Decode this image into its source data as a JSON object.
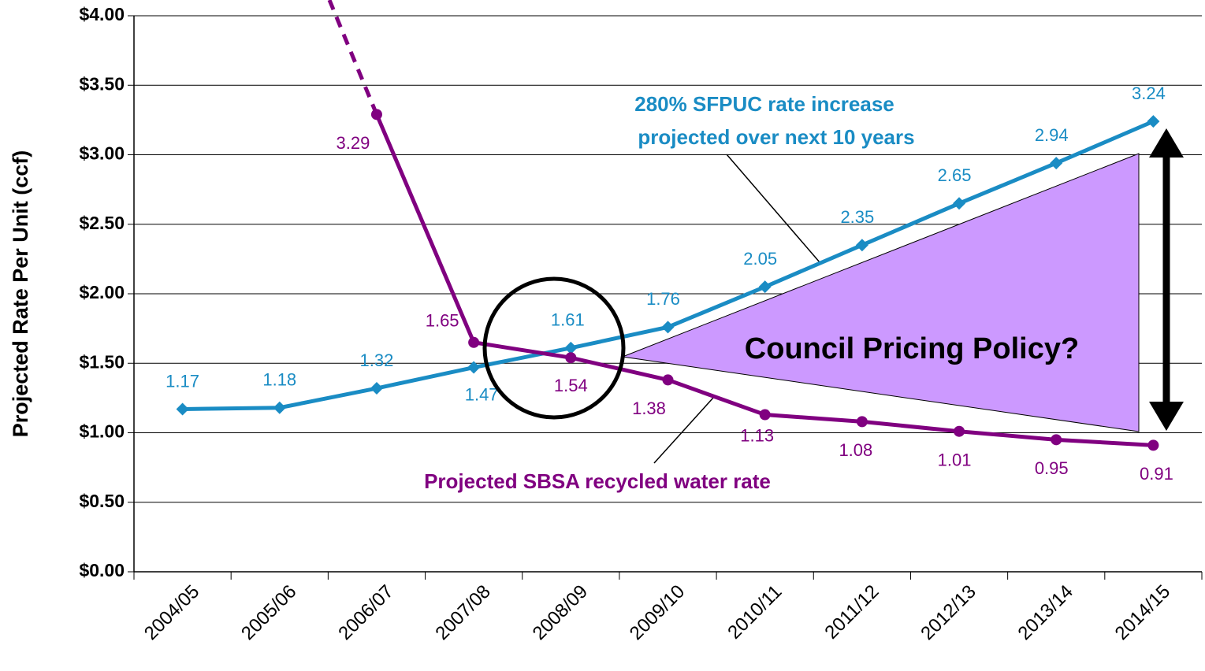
{
  "chart_data": {
    "type": "line",
    "y_label": "Projected Rate Per Unit (ccf)",
    "categories": [
      "2004/05",
      "2005/06",
      "2006/07",
      "2007/08",
      "2008/09",
      "2009/10",
      "2010/11",
      "2011/12",
      "2012/13",
      "2013/14",
      "2014/15"
    ],
    "series": [
      {
        "name": "SFPUC",
        "color": "#1a8cc4",
        "marker": "diamond",
        "values": [
          1.17,
          1.18,
          1.32,
          1.47,
          1.61,
          1.76,
          2.05,
          2.35,
          2.65,
          2.94,
          3.24
        ]
      },
      {
        "name": "SBSA",
        "color": "#800080",
        "marker": "circle",
        "values": [
          null,
          null,
          3.29,
          1.65,
          1.54,
          1.38,
          1.13,
          1.08,
          1.01,
          0.95,
          0.91
        ]
      }
    ],
    "ylim": [
      0,
      4
    ],
    "yticks": [
      {
        "value": 0,
        "label": "$0.00"
      },
      {
        "value": 0.5,
        "label": "$0.50"
      },
      {
        "value": 1,
        "label": "$1.00"
      },
      {
        "value": 1.5,
        "label": "$1.50"
      },
      {
        "value": 2,
        "label": "$2.00"
      },
      {
        "value": 2.5,
        "label": "$2.50"
      },
      {
        "value": 3,
        "label": "$3.00"
      },
      {
        "value": 3.5,
        "label": "$3.50"
      },
      {
        "value": 4,
        "label": "$4.00"
      }
    ],
    "grid": true,
    "annotations": [
      "280% SFPUC rate increase",
      "projected over next 10 years",
      "Projected SBSA recycled water rate",
      "Council Pricing Policy?"
    ]
  }
}
